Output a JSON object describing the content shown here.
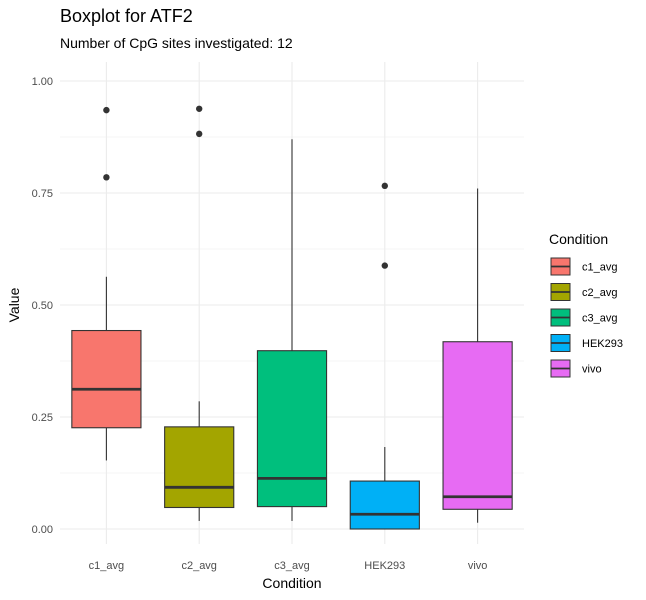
{
  "chart_data": {
    "type": "boxplot",
    "title": "Boxplot for ATF2",
    "subtitle": "Number of CpG sites investigated: 12",
    "xlabel": "Condition",
    "ylabel": "Value",
    "ylim": [
      0.0,
      1.0
    ],
    "yticks": [
      "0.00",
      "0.25",
      "0.50",
      "0.75",
      "1.00"
    ],
    "ytick_values": [
      0.0,
      0.25,
      0.5,
      0.75,
      1.0
    ],
    "grid": true,
    "legend": {
      "title": "Condition",
      "placement": "right"
    },
    "categories": [
      "c1_avg",
      "c2_avg",
      "c3_avg",
      "HEK293",
      "vivo"
    ],
    "series": [
      {
        "name": "c1_avg",
        "color": "#F8766D",
        "min": 0.153,
        "q1": 0.226,
        "median": 0.312,
        "q3": 0.443,
        "max": 0.563,
        "outliers": [
          0.785,
          0.935
        ]
      },
      {
        "name": "c2_avg",
        "color": "#A3A500",
        "min": 0.018,
        "q1": 0.048,
        "median": 0.093,
        "q3": 0.228,
        "max": 0.285,
        "outliers": [
          0.882,
          0.938
        ]
      },
      {
        "name": "c3_avg",
        "color": "#00BF7D",
        "min": 0.018,
        "q1": 0.05,
        "median": 0.113,
        "q3": 0.398,
        "max": 0.87,
        "outliers": []
      },
      {
        "name": "HEK293",
        "color": "#00B0F6",
        "min": 0.0,
        "q1": 0.0,
        "median": 0.033,
        "q3": 0.107,
        "max": 0.183,
        "outliers": [
          0.588,
          0.766
        ]
      },
      {
        "name": "vivo",
        "color": "#E76BF3",
        "min": 0.014,
        "q1": 0.044,
        "median": 0.072,
        "q3": 0.418,
        "max": 0.76,
        "outliers": []
      }
    ]
  }
}
